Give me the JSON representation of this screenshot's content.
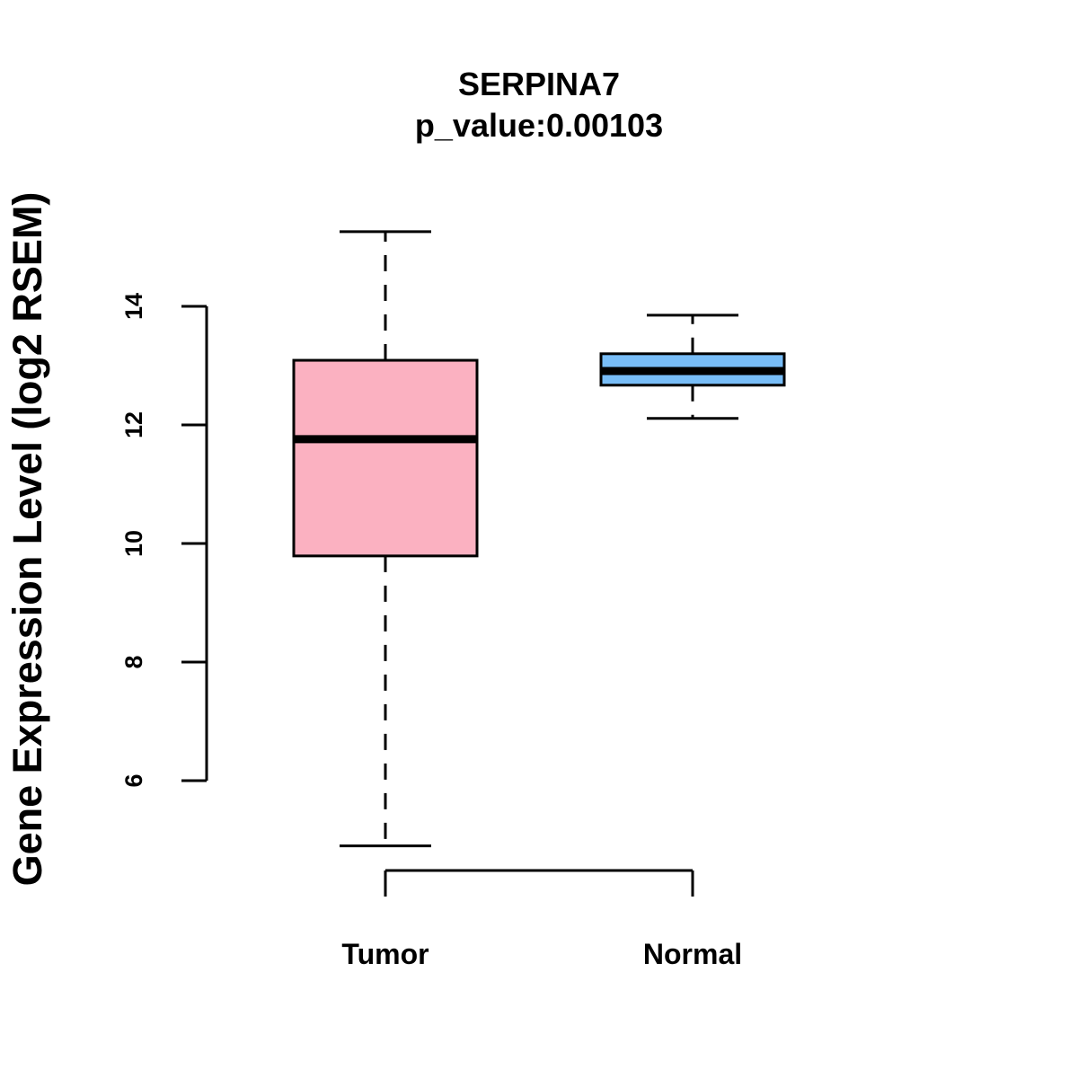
{
  "chart_data": {
    "type": "boxplot",
    "title": "SERPINA7",
    "subtitle": "p_value:0.00103",
    "xlabel": "",
    "ylabel": "Gene Expression Level (log2 RSEM)",
    "ylim": [
      4.2,
      15.9
    ],
    "yticks": [
      6,
      8,
      10,
      12,
      14
    ],
    "ytick_labels": [
      "6",
      "8",
      "10",
      "12",
      "14"
    ],
    "categories": [
      "Tumor",
      "Normal"
    ],
    "boxes": [
      {
        "name": "Tumor",
        "min": 4.9,
        "q1": 9.79,
        "median": 11.76,
        "q3": 13.09,
        "max": 15.26,
        "color": "#FBB1C1"
      },
      {
        "name": "Normal",
        "min": 12.11,
        "q1": 12.67,
        "median": 12.91,
        "q3": 13.2,
        "max": 13.85,
        "color": "#78BDF7"
      }
    ],
    "grid": false,
    "legend": "none"
  }
}
